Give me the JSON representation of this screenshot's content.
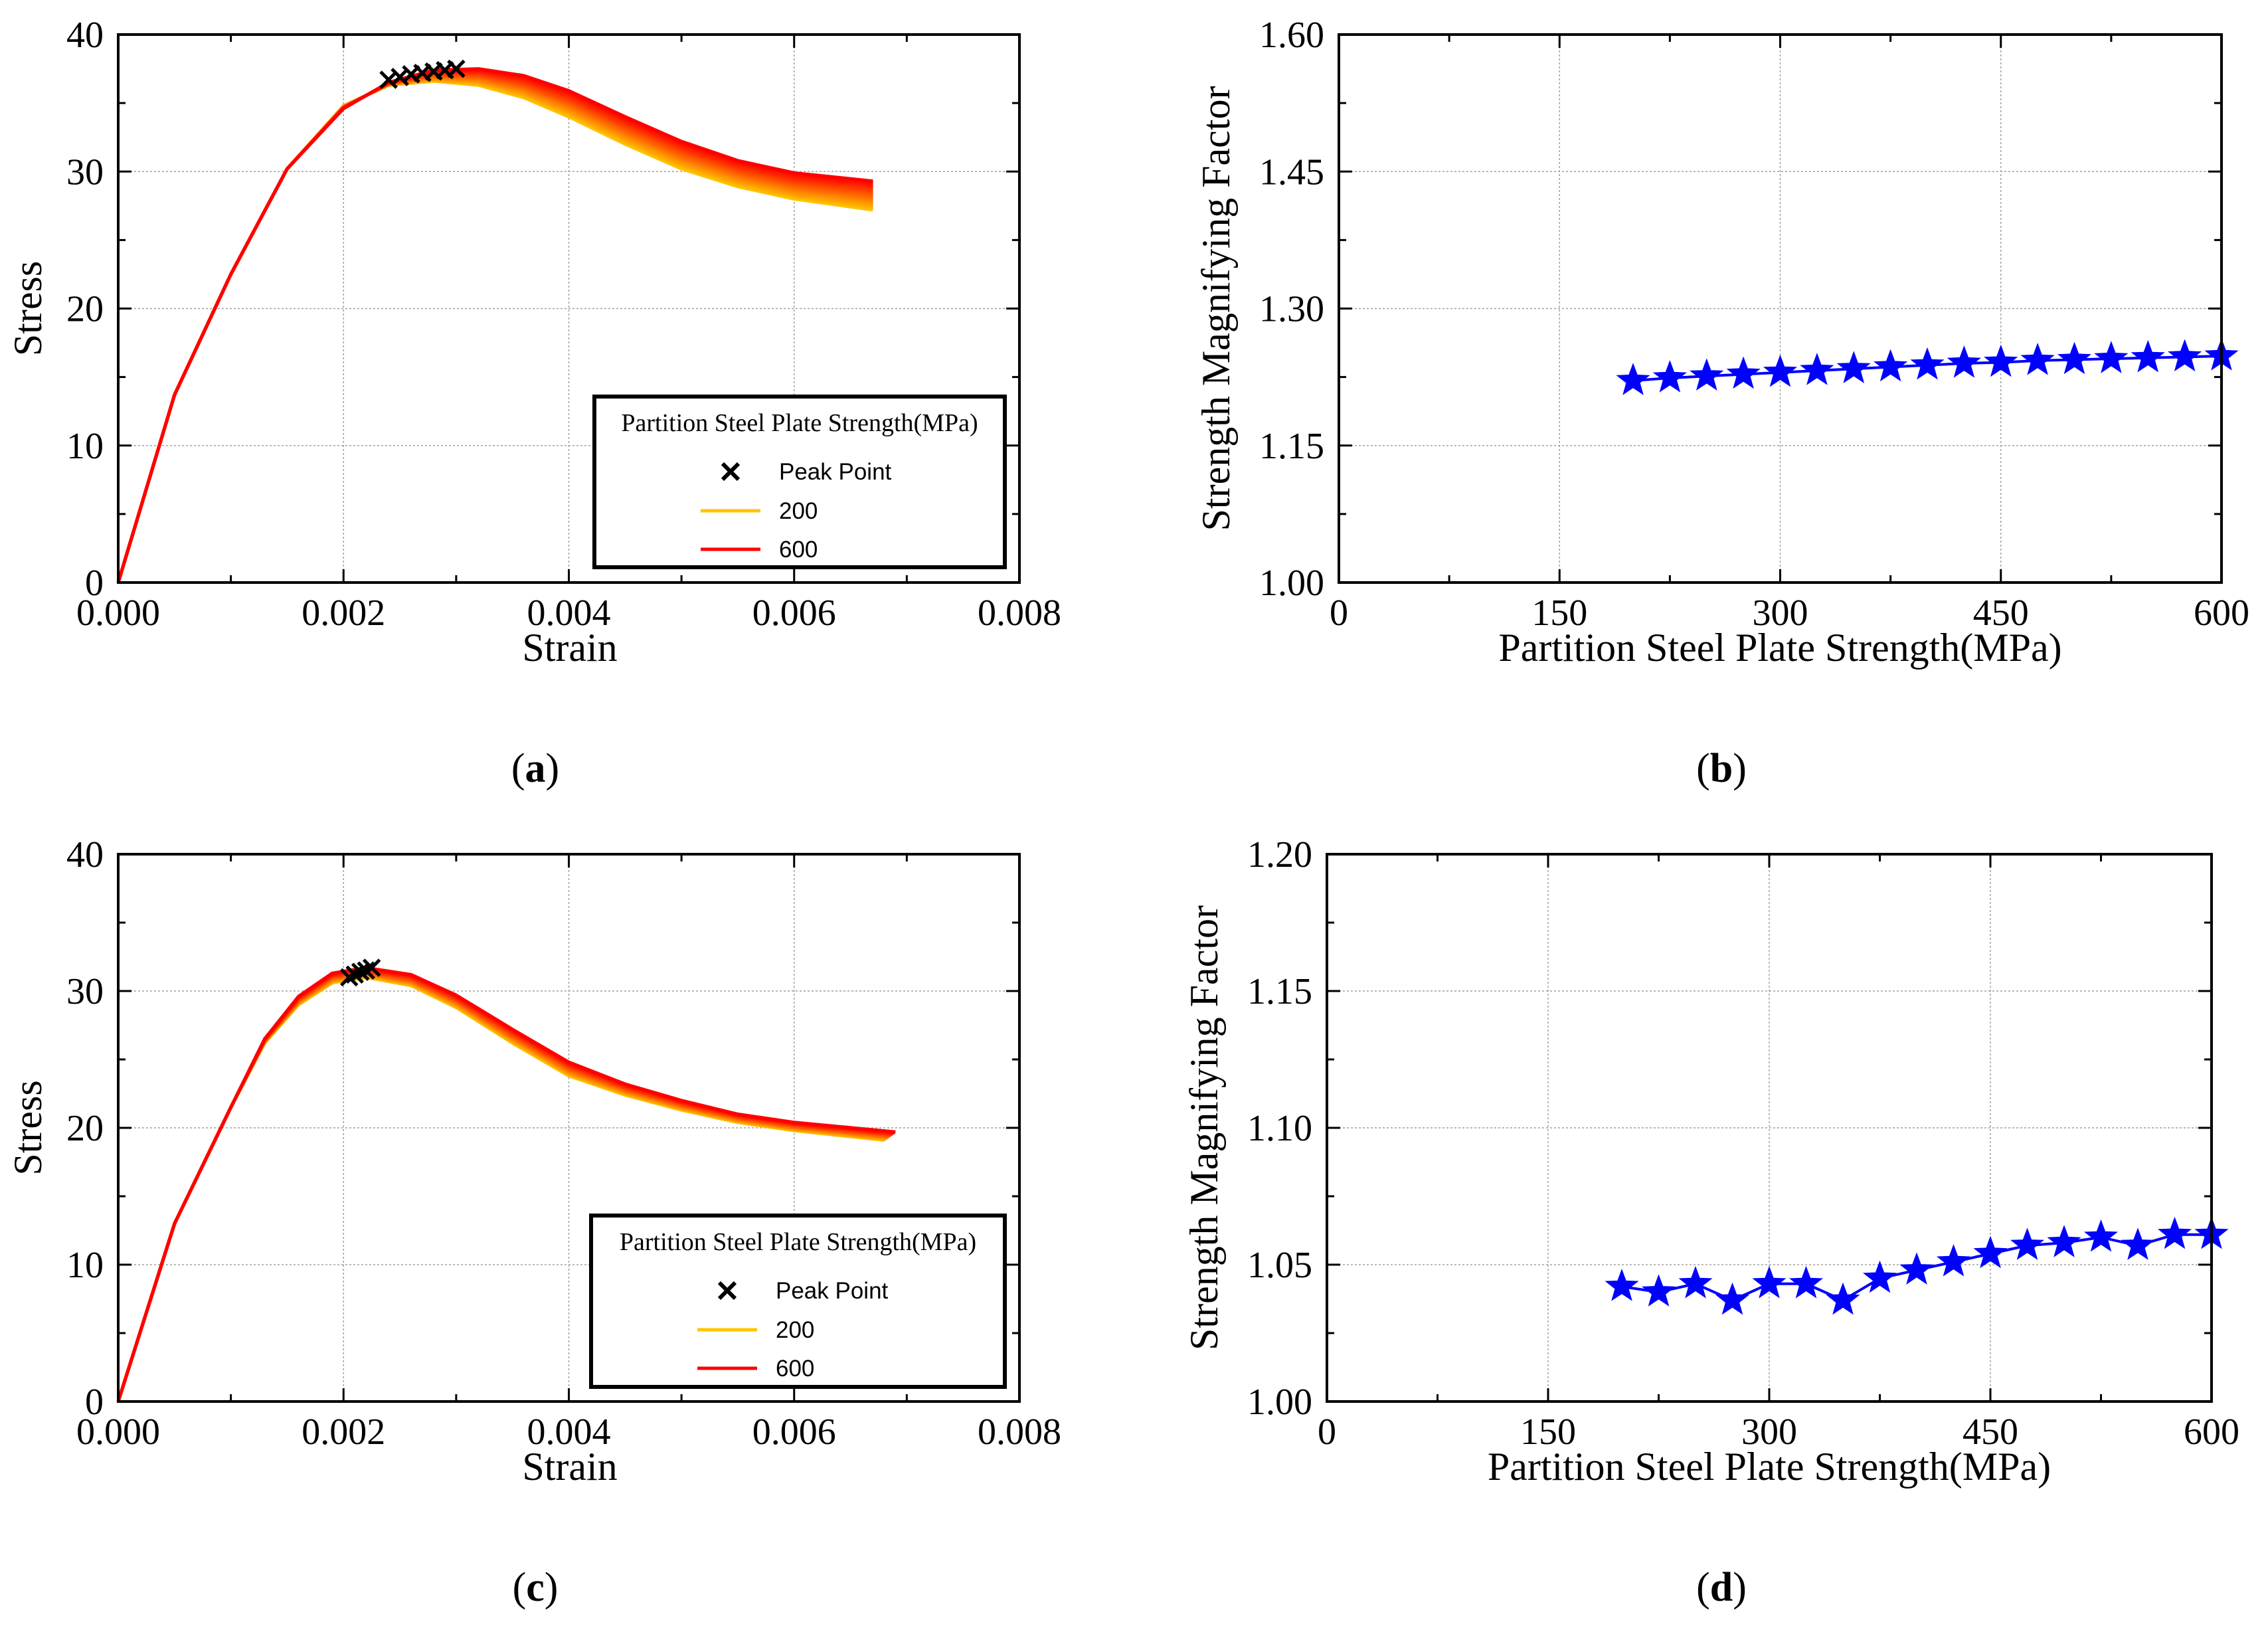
{
  "legend": {
    "title": "Partition Steel Plate Strength(MPa)",
    "peak_label": "Peak Point",
    "low_label": "200",
    "high_label": "600"
  },
  "colors": {
    "low": "#FFC400",
    "high": "#FF0000",
    "marker": "#0000FF",
    "peak": "#000000",
    "grid": "#A0A0A0"
  },
  "chart_data": [
    {
      "panel_label": "a",
      "type": "line",
      "xlabel": "Strain",
      "ylabel": "Stress",
      "xlim": [
        0,
        0.008
      ],
      "ylim": [
        0,
        40
      ],
      "xticks": [
        "0.000",
        "0.002",
        "0.004",
        "0.006",
        "0.008"
      ],
      "yticks": [
        "0",
        "10",
        "20",
        "30",
        "40"
      ],
      "grid": true,
      "legend_position": "bottom-right",
      "series_count": 17,
      "series_strength": [
        200,
        225,
        250,
        275,
        300,
        325,
        350,
        375,
        400,
        425,
        450,
        475,
        500,
        525,
        550,
        575,
        600
      ],
      "series": [
        {
          "name": "200",
          "x": [
            0,
            0.0005,
            0.001,
            0.0015,
            0.002,
            0.0024,
            0.0028,
            0.0032,
            0.0036,
            0.004,
            0.0045,
            0.005,
            0.0055,
            0.006,
            0.0067
          ],
          "y": [
            0,
            13.7,
            22.5,
            30.2,
            34.8,
            36.3,
            36.6,
            36.3,
            35.4,
            34.0,
            32.0,
            30.2,
            28.9,
            28.0,
            27.2
          ]
        },
        {
          "name": "600",
          "x": [
            0,
            0.0005,
            0.001,
            0.0015,
            0.002,
            0.0024,
            0.0028,
            0.0032,
            0.0036,
            0.004,
            0.0045,
            0.005,
            0.0055,
            0.006,
            0.0067
          ],
          "y": [
            0,
            13.7,
            22.5,
            30.2,
            34.6,
            36.5,
            37.4,
            37.5,
            37.0,
            35.9,
            34.0,
            32.2,
            30.8,
            29.9,
            29.3
          ]
        }
      ],
      "peak_points": {
        "x": [
          0.0024,
          0.0025,
          0.0026,
          0.0027,
          0.0028,
          0.0029,
          0.003
        ],
        "y": [
          36.7,
          36.9,
          37.1,
          37.2,
          37.3,
          37.4,
          37.5
        ]
      }
    },
    {
      "panel_label": "b",
      "type": "line",
      "xlabel": "Partition Steel Plate Strength(MPa)",
      "ylabel": "Strength Magnifying Factor",
      "xlim": [
        0,
        600
      ],
      "ylim": [
        1.0,
        1.6
      ],
      "xticks": [
        "0",
        "150",
        "300",
        "450",
        "600"
      ],
      "yticks": [
        "1.00",
        "1.15",
        "1.30",
        "1.45",
        "1.60"
      ],
      "grid": true,
      "x": [
        200,
        225,
        250,
        275,
        300,
        325,
        350,
        375,
        400,
        425,
        450,
        475,
        500,
        525,
        550,
        575,
        600
      ],
      "values": [
        1.221,
        1.224,
        1.226,
        1.228,
        1.23,
        1.232,
        1.234,
        1.236,
        1.238,
        1.24,
        1.241,
        1.243,
        1.244,
        1.245,
        1.246,
        1.247,
        1.248
      ]
    },
    {
      "panel_label": "c",
      "type": "line",
      "xlabel": "Strain",
      "ylabel": "Stress",
      "xlim": [
        0,
        0.008
      ],
      "ylim": [
        0,
        40
      ],
      "xticks": [
        "0.000",
        "0.002",
        "0.004",
        "0.006",
        "0.008"
      ],
      "yticks": [
        "0",
        "10",
        "20",
        "30",
        "40"
      ],
      "grid": true,
      "legend_position": "bottom-right",
      "series_count": 17,
      "series_strength": [
        200,
        225,
        250,
        275,
        300,
        325,
        350,
        375,
        400,
        425,
        450,
        475,
        500,
        525,
        550,
        575,
        600
      ],
      "series": [
        {
          "name": "200",
          "x": [
            0,
            0.0005,
            0.001,
            0.0013,
            0.0016,
            0.0019,
            0.0022,
            0.0026,
            0.003,
            0.0035,
            0.004,
            0.0045,
            0.005,
            0.0055,
            0.006,
            0.0068
          ],
          "y": [
            0,
            13.0,
            21.5,
            26.2,
            29.0,
            30.6,
            31.0,
            30.4,
            28.8,
            26.2,
            23.8,
            22.4,
            21.3,
            20.4,
            19.8,
            19.1
          ]
        },
        {
          "name": "600",
          "x": [
            0,
            0.0005,
            0.001,
            0.0013,
            0.0016,
            0.0019,
            0.0022,
            0.0026,
            0.003,
            0.0035,
            0.004,
            0.0045,
            0.005,
            0.0055,
            0.006,
            0.0069
          ],
          "y": [
            0,
            13.0,
            21.5,
            26.5,
            29.6,
            31.3,
            31.7,
            31.2,
            29.7,
            27.2,
            24.8,
            23.2,
            22.0,
            21.0,
            20.4,
            19.7
          ]
        }
      ],
      "peak_points": {
        "x": [
          0.00205,
          0.0021,
          0.00215,
          0.0022,
          0.00225
        ],
        "y": [
          31.0,
          31.2,
          31.4,
          31.5,
          31.7
        ]
      }
    },
    {
      "panel_label": "d",
      "type": "line",
      "xlabel": "Partition Steel Plate Strength(MPa)",
      "ylabel": "Strength Magnifying Factor",
      "xlim": [
        0,
        600
      ],
      "ylim": [
        1.0,
        1.2
      ],
      "xticks": [
        "0",
        "150",
        "300",
        "450",
        "600"
      ],
      "yticks": [
        "1.00",
        "1.05",
        "1.10",
        "1.15",
        "1.20"
      ],
      "grid": true,
      "x": [
        200,
        225,
        250,
        275,
        300,
        325,
        350,
        375,
        400,
        425,
        450,
        475,
        500,
        525,
        550,
        575,
        600
      ],
      "values": [
        1.042,
        1.04,
        1.043,
        1.037,
        1.043,
        1.043,
        1.037,
        1.045,
        1.048,
        1.051,
        1.054,
        1.057,
        1.058,
        1.06,
        1.057,
        1.061,
        1.061
      ]
    }
  ]
}
